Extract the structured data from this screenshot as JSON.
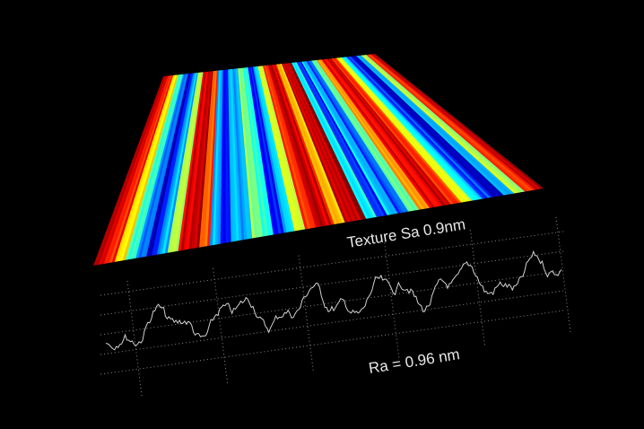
{
  "labels": {
    "texture": "Texture Sa 0.9nm",
    "roughness": "Ra = 0.96 nm"
  }
}
